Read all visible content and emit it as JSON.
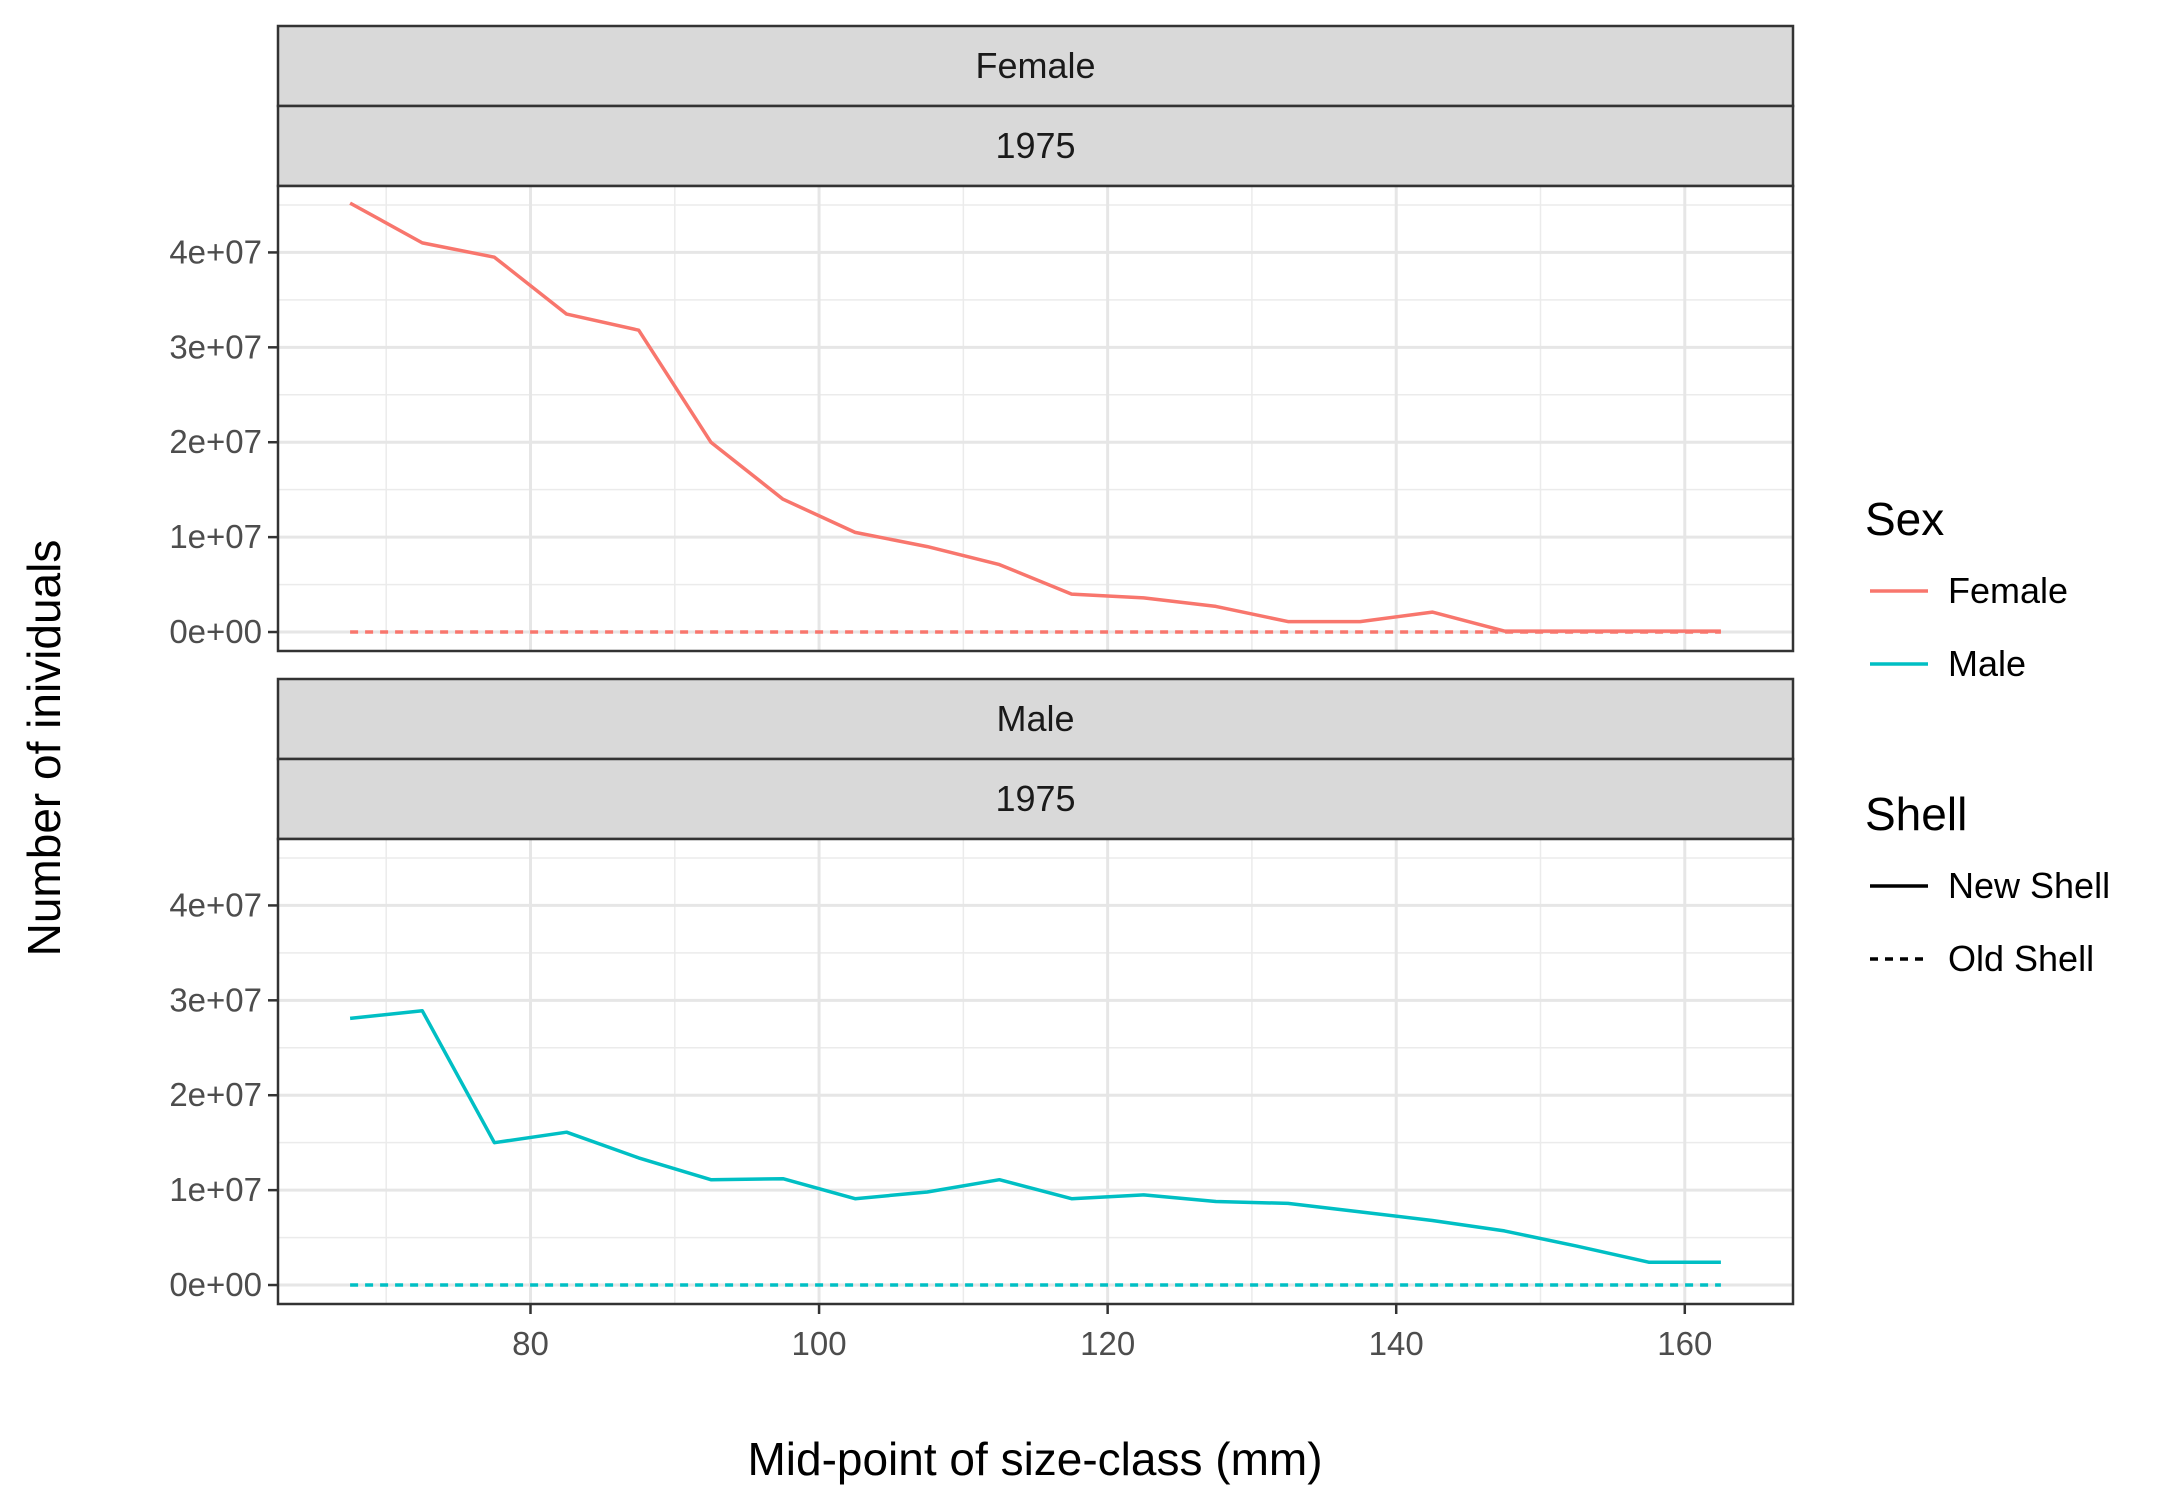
{
  "chart_data": {
    "type": "line",
    "facets": [
      "Female",
      "Male"
    ],
    "facet_year": "1975",
    "xlabel": "Mid-point of size-class (mm)",
    "ylabel": "Number of inividuals",
    "xlim": [
      62.5,
      167.5
    ],
    "ylim": [
      -2000000,
      47000000
    ],
    "x_ticks": [
      80,
      100,
      120,
      140,
      160
    ],
    "y_ticks": [
      0,
      10000000,
      20000000,
      30000000,
      40000000
    ],
    "y_tick_labels": [
      "0e+00",
      "1e+07",
      "2e+07",
      "3e+07",
      "4e+07"
    ],
    "grid": true,
    "legend_position": "right",
    "legend": {
      "sex_title": "Sex",
      "sex_items": [
        {
          "label": "Female",
          "color": "#F8766D"
        },
        {
          "label": "Male",
          "color": "#00BFC4"
        }
      ],
      "shell_title": "Shell",
      "shell_items": [
        {
          "label": "New Shell",
          "linetype": "solid"
        },
        {
          "label": "Old Shell",
          "linetype": "dashed"
        }
      ]
    },
    "x": [
      67.5,
      72.5,
      77.5,
      82.5,
      87.5,
      92.5,
      97.5,
      102.5,
      107.5,
      112.5,
      117.5,
      122.5,
      127.5,
      132.5,
      137.5,
      142.5,
      147.5,
      152.5,
      157.5,
      162.5
    ],
    "series": [
      {
        "facet": "Female",
        "name": "New Shell",
        "sex": "Female",
        "shell": "New Shell",
        "color": "#F8766D",
        "values": [
          45200000,
          41000000,
          39500000,
          33500000,
          31800000,
          20000000,
          14000000,
          10500000,
          9000000,
          7100000,
          4000000,
          3600000,
          2700000,
          1100000,
          1100000,
          2100000,
          100000,
          100000,
          100000,
          100000
        ]
      },
      {
        "facet": "Female",
        "name": "Old Shell",
        "sex": "Female",
        "shell": "Old Shell",
        "color": "#F8766D",
        "values": [
          0,
          0,
          0,
          0,
          0,
          0,
          0,
          0,
          0,
          0,
          0,
          0,
          0,
          0,
          0,
          0,
          0,
          0,
          0,
          0
        ]
      },
      {
        "facet": "Male",
        "name": "New Shell",
        "sex": "Male",
        "shell": "New Shell",
        "color": "#00BFC4",
        "values": [
          28100000,
          28900000,
          15000000,
          16100000,
          13400000,
          11100000,
          11200000,
          9100000,
          9800000,
          11100000,
          9100000,
          9500000,
          8800000,
          8600000,
          7700000,
          6800000,
          5700000,
          4100000,
          2400000,
          2400000
        ]
      },
      {
        "facet": "Male",
        "name": "Old Shell",
        "sex": "Male",
        "shell": "Old Shell",
        "color": "#00BFC4",
        "values": [
          0,
          0,
          0,
          0,
          0,
          0,
          0,
          0,
          0,
          0,
          0,
          0,
          0,
          0,
          0,
          0,
          0,
          0,
          0,
          0
        ]
      }
    ]
  }
}
